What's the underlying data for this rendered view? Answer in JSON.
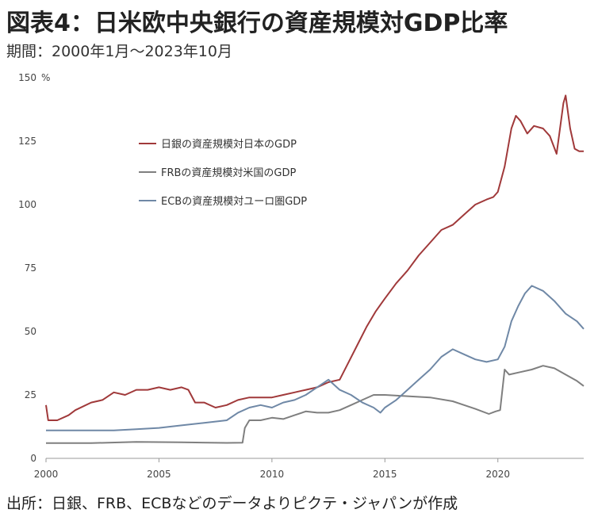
{
  "title": "図表4：日米欧中央銀行の資産規模対GDP比率",
  "subtitle": "期間：2000年1月～2023年10月",
  "source": "出所：日銀、FRB、ECBなどのデータよりピクテ・ジャパンが作成",
  "chart_data": {
    "type": "line",
    "title": "図表4：日米欧中央銀行の資産規模対GDP比率",
    "ylabel": "%",
    "xlim": [
      2000,
      2023.8
    ],
    "ylim": [
      0,
      150
    ],
    "y_ticks": [
      0,
      25,
      50,
      75,
      100,
      125,
      150
    ],
    "x_ticks": [
      2000,
      2005,
      2010,
      2015,
      2020
    ],
    "y_tick_labels": [
      "0",
      "25",
      "50",
      "75",
      "100",
      "125",
      "150"
    ],
    "x_tick_labels": [
      "2000",
      "2005",
      "2010",
      "2015",
      "2020"
    ],
    "grid": false,
    "legend": "upper-left-inside",
    "series": [
      {
        "name": "日銀の資産規模対日本のGDP",
        "color": "#a0393a",
        "points": [
          [
            2000.0,
            21
          ],
          [
            2000.1,
            15
          ],
          [
            2000.5,
            15
          ],
          [
            2001.0,
            17
          ],
          [
            2001.3,
            19
          ],
          [
            2002.0,
            22
          ],
          [
            2002.5,
            23
          ],
          [
            2003.0,
            26
          ],
          [
            2003.5,
            25
          ],
          [
            2004.0,
            27
          ],
          [
            2004.5,
            27
          ],
          [
            2005.0,
            28
          ],
          [
            2005.5,
            27
          ],
          [
            2006.0,
            28
          ],
          [
            2006.3,
            27
          ],
          [
            2006.6,
            22
          ],
          [
            2007.0,
            22
          ],
          [
            2007.5,
            20
          ],
          [
            2008.0,
            21
          ],
          [
            2008.5,
            23
          ],
          [
            2009.0,
            24
          ],
          [
            2009.5,
            24
          ],
          [
            2010.0,
            24
          ],
          [
            2010.5,
            25
          ],
          [
            2011.0,
            26
          ],
          [
            2011.5,
            27
          ],
          [
            2012.0,
            28
          ],
          [
            2012.5,
            30
          ],
          [
            2013.0,
            31
          ],
          [
            2013.4,
            38
          ],
          [
            2013.8,
            45
          ],
          [
            2014.2,
            52
          ],
          [
            2014.6,
            58
          ],
          [
            2015.0,
            63
          ],
          [
            2015.5,
            69
          ],
          [
            2016.0,
            74
          ],
          [
            2016.5,
            80
          ],
          [
            2017.0,
            85
          ],
          [
            2017.5,
            90
          ],
          [
            2018.0,
            92
          ],
          [
            2018.5,
            96
          ],
          [
            2019.0,
            100
          ],
          [
            2019.5,
            102
          ],
          [
            2019.8,
            103
          ],
          [
            2020.0,
            105
          ],
          [
            2020.3,
            115
          ],
          [
            2020.6,
            130
          ],
          [
            2020.8,
            135
          ],
          [
            2021.0,
            133
          ],
          [
            2021.3,
            128
          ],
          [
            2021.6,
            131
          ],
          [
            2022.0,
            130
          ],
          [
            2022.3,
            127
          ],
          [
            2022.6,
            120
          ],
          [
            2022.9,
            140
          ],
          [
            2023.0,
            143
          ],
          [
            2023.2,
            130
          ],
          [
            2023.4,
            122
          ],
          [
            2023.6,
            121
          ],
          [
            2023.8,
            121
          ]
        ]
      },
      {
        "name": "FRBの資産規模対米国のGDP",
        "color": "#7f7f7f",
        "points": [
          [
            2000.0,
            6
          ],
          [
            2002.0,
            6
          ],
          [
            2004.0,
            6.5
          ],
          [
            2006.0,
            6.3
          ],
          [
            2008.0,
            6.1
          ],
          [
            2008.7,
            6.2
          ],
          [
            2008.8,
            12
          ],
          [
            2009.0,
            15
          ],
          [
            2009.5,
            15
          ],
          [
            2010.0,
            16
          ],
          [
            2010.5,
            15.5
          ],
          [
            2011.0,
            17
          ],
          [
            2011.5,
            18.5
          ],
          [
            2012.0,
            18
          ],
          [
            2012.5,
            18
          ],
          [
            2013.0,
            19
          ],
          [
            2013.5,
            21
          ],
          [
            2014.0,
            23
          ],
          [
            2014.5,
            25
          ],
          [
            2015.0,
            25
          ],
          [
            2016.0,
            24.5
          ],
          [
            2017.0,
            24
          ],
          [
            2018.0,
            22.5
          ],
          [
            2019.0,
            19.5
          ],
          [
            2019.6,
            17.5
          ],
          [
            2019.9,
            18.5
          ],
          [
            2020.1,
            19
          ],
          [
            2020.3,
            35
          ],
          [
            2020.5,
            33
          ],
          [
            2021.0,
            34
          ],
          [
            2021.5,
            35
          ],
          [
            2022.0,
            36.5
          ],
          [
            2022.5,
            35.5
          ],
          [
            2023.0,
            33
          ],
          [
            2023.5,
            30.5
          ],
          [
            2023.8,
            28.5
          ]
        ]
      },
      {
        "name": "ECBの資産規模対ユーロ圏GDP",
        "color": "#6f88a6",
        "points": [
          [
            2000.0,
            11
          ],
          [
            2001.0,
            11
          ],
          [
            2002.0,
            11
          ],
          [
            2003.0,
            11
          ],
          [
            2004.0,
            11.5
          ],
          [
            2005.0,
            12
          ],
          [
            2006.0,
            13
          ],
          [
            2007.0,
            14
          ],
          [
            2008.0,
            15
          ],
          [
            2008.5,
            18
          ],
          [
            2009.0,
            20
          ],
          [
            2009.5,
            21
          ],
          [
            2010.0,
            20
          ],
          [
            2010.5,
            22
          ],
          [
            2011.0,
            23
          ],
          [
            2011.5,
            25
          ],
          [
            2012.0,
            28
          ],
          [
            2012.5,
            31
          ],
          [
            2013.0,
            27
          ],
          [
            2013.5,
            25
          ],
          [
            2014.0,
            22
          ],
          [
            2014.5,
            20
          ],
          [
            2014.8,
            18
          ],
          [
            2015.0,
            20
          ],
          [
            2015.5,
            23
          ],
          [
            2016.0,
            27
          ],
          [
            2016.5,
            31
          ],
          [
            2017.0,
            35
          ],
          [
            2017.5,
            40
          ],
          [
            2018.0,
            43
          ],
          [
            2018.5,
            41
          ],
          [
            2019.0,
            39
          ],
          [
            2019.5,
            38
          ],
          [
            2020.0,
            39
          ],
          [
            2020.3,
            44
          ],
          [
            2020.6,
            54
          ],
          [
            2020.9,
            60
          ],
          [
            2021.2,
            65
          ],
          [
            2021.5,
            68
          ],
          [
            2022.0,
            66
          ],
          [
            2022.5,
            62
          ],
          [
            2023.0,
            57
          ],
          [
            2023.5,
            54
          ],
          [
            2023.8,
            51
          ]
        ]
      }
    ]
  }
}
